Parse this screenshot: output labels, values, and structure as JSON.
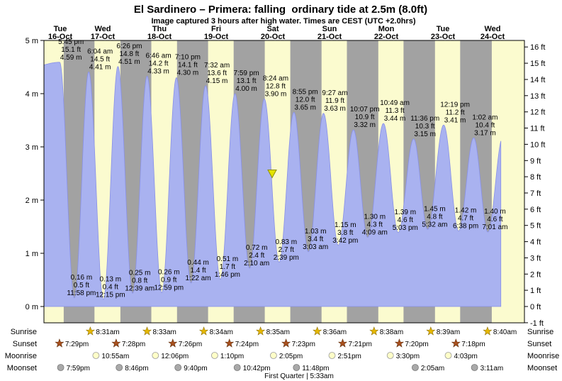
{
  "title": "El Sardinero – Primera: falling  ordinary tide at 2.5m (8.0ft)",
  "subtitle": "Image captured 3 hours after high water. Times are CEST (UTC +2.0hrs)",
  "rows": {
    "sunrise": "Sunrise",
    "sunset": "Sunset",
    "moonrise": "Moonrise",
    "moonset": "Moonset"
  },
  "colors": {
    "day_band": "#fbfbcf",
    "night_band": "#a2a2a2",
    "tide_fill": "#a9b2f0",
    "tide_edge": "#8890e8",
    "day_label_red": "#f00000",
    "marker_yellow": "#e3e300",
    "marker_edge": "#8f8f00",
    "sunrise_star": "#e6b800",
    "sunset_star": "#a8501e",
    "moonrise_circle": "#ffffc8",
    "moonset_circle": "#a9a9a9"
  },
  "chart_data": {
    "type": "area",
    "title": "El Sardinero – Primera tide height over time",
    "x_days": [
      {
        "weekday": "Tue",
        "date": "16-Oct"
      },
      {
        "weekday": "Wed",
        "date": "17-Oct"
      },
      {
        "weekday": "Thu",
        "date": "18-Oct"
      },
      {
        "weekday": "Fri",
        "date": "19-Oct"
      },
      {
        "weekday": "Sat",
        "date": "20-Oct"
      },
      {
        "weekday": "Sun",
        "date": "21-Oct"
      },
      {
        "weekday": "Mon",
        "date": "22-Oct"
      },
      {
        "weekday": "Tue",
        "date": "23-Oct"
      },
      {
        "weekday": "Wed",
        "date": "24-Oct"
      }
    ],
    "y_axis_left": {
      "unit": "m",
      "min": 0,
      "max": 5
    },
    "y_axis_right": {
      "unit": "ft",
      "min": -1,
      "max": 16
    },
    "tide_events": [
      {
        "type": "high",
        "day": 0,
        "time": "5:45 pm",
        "height_m": 4.59,
        "height_ft": 15.1
      },
      {
        "type": "low",
        "day": 0,
        "time": "11:58 pm",
        "height_m": 0.16,
        "height_ft": 0.5
      },
      {
        "type": "high",
        "day": 1,
        "time": "6:04 am",
        "height_m": 4.41,
        "height_ft": 14.5
      },
      {
        "type": "low",
        "day": 1,
        "time": "12:15 pm",
        "height_m": 0.13,
        "height_ft": 0.4
      },
      {
        "type": "high",
        "day": 1,
        "time": "6:26 pm",
        "height_m": 4.51,
        "height_ft": 14.8
      },
      {
        "type": "low",
        "day": 2,
        "time": "12:39 am",
        "height_m": 0.25,
        "height_ft": 0.8
      },
      {
        "type": "high",
        "day": 2,
        "time": "6:46 am",
        "height_m": 4.33,
        "height_ft": 14.2
      },
      {
        "type": "low",
        "day": 2,
        "time": "12:59 pm",
        "height_m": 0.26,
        "height_ft": 0.9
      },
      {
        "type": "high",
        "day": 2,
        "time": "7:10 pm",
        "height_m": 4.3,
        "height_ft": 14.1
      },
      {
        "type": "low",
        "day": 3,
        "time": "1:22 am",
        "height_m": 0.44,
        "height_ft": 1.4
      },
      {
        "type": "high",
        "day": 3,
        "time": "7:32 am",
        "height_m": 4.15,
        "height_ft": 13.6
      },
      {
        "type": "low",
        "day": 3,
        "time": "1:46 pm",
        "height_m": 0.51,
        "height_ft": 1.7
      },
      {
        "type": "high",
        "day": 3,
        "time": "7:59 pm",
        "height_m": 4.0,
        "height_ft": 13.1
      },
      {
        "type": "low",
        "day": 4,
        "time": "2:10 am",
        "height_m": 0.72,
        "height_ft": 2.4
      },
      {
        "type": "high",
        "day": 4,
        "time": "8:24 am",
        "height_m": 3.9,
        "height_ft": 12.8
      },
      {
        "type": "low",
        "day": 4,
        "time": "2:39 pm",
        "height_m": 0.83,
        "height_ft": 2.7
      },
      {
        "type": "high",
        "day": 4,
        "time": "8:55 pm",
        "height_m": 3.65,
        "height_ft": 12.0
      },
      {
        "type": "low",
        "day": 5,
        "time": "3:03 am",
        "height_m": 1.03,
        "height_ft": 3.4
      },
      {
        "type": "high",
        "day": 5,
        "time": "9:27 am",
        "height_m": 3.63,
        "height_ft": 11.9
      },
      {
        "type": "low",
        "day": 5,
        "time": "3:42 pm",
        "height_m": 1.15,
        "height_ft": 3.8
      },
      {
        "type": "high",
        "day": 5,
        "time": "10:07 pm",
        "height_m": 3.32,
        "height_ft": 10.9
      },
      {
        "type": "low",
        "day": 6,
        "time": "4:09 am",
        "height_m": 1.3,
        "height_ft": 4.3
      },
      {
        "type": "high",
        "day": 6,
        "time": "10:49 am",
        "height_m": 3.44,
        "height_ft": 11.3
      },
      {
        "type": "low",
        "day": 6,
        "time": "5:03 pm",
        "height_m": 1.39,
        "height_ft": 4.6
      },
      {
        "type": "high",
        "day": 6,
        "time": "11:36 pm",
        "height_m": 3.15,
        "height_ft": 10.3
      },
      {
        "type": "low",
        "day": 7,
        "time": "5:32 am",
        "height_m": 1.45,
        "height_ft": 4.8
      },
      {
        "type": "high",
        "day": 7,
        "time": "12:19 pm",
        "height_m": 3.41,
        "height_ft": 11.2
      },
      {
        "type": "low",
        "day": 7,
        "time": "6:38 pm",
        "height_m": 1.42,
        "height_ft": 4.7
      },
      {
        "type": "high",
        "day": 8,
        "time": "1:02 am",
        "height_m": 3.17,
        "height_ft": 10.4
      },
      {
        "type": "low",
        "day": 8,
        "time": "7:01 am",
        "height_m": 1.4,
        "height_ft": 4.6
      }
    ],
    "curve_edge_estimates": {
      "start": {
        "day": 0,
        "time": "5:25 am",
        "height_m": 4.5
      },
      "end": {
        "day": 8,
        "time": "1:25 pm",
        "height_m": 3.2
      }
    },
    "capture_marker": {
      "day": 4,
      "time": "11:42 am",
      "height_m": 2.5
    },
    "sunrise": [
      {
        "day": 1,
        "time": "8:31am"
      },
      {
        "day": 2,
        "time": "8:33am"
      },
      {
        "day": 3,
        "time": "8:34am"
      },
      {
        "day": 4,
        "time": "8:35am"
      },
      {
        "day": 5,
        "time": "8:36am"
      },
      {
        "day": 6,
        "time": "8:38am"
      },
      {
        "day": 7,
        "time": "8:39am"
      },
      {
        "day": 8,
        "time": "8:40am"
      }
    ],
    "sunset": [
      {
        "day": 0,
        "time": "7:29pm"
      },
      {
        "day": 1,
        "time": "7:28pm"
      },
      {
        "day": 2,
        "time": "7:26pm"
      },
      {
        "day": 3,
        "time": "7:24pm"
      },
      {
        "day": 4,
        "time": "7:23pm"
      },
      {
        "day": 5,
        "time": "7:21pm"
      },
      {
        "day": 6,
        "time": "7:20pm"
      },
      {
        "day": 7,
        "time": "7:18pm"
      }
    ],
    "moonrise": [
      {
        "day": 1,
        "time": "10:55am"
      },
      {
        "day": 2,
        "time": "12:06pm"
      },
      {
        "day": 3,
        "time": "1:10pm"
      },
      {
        "day": 4,
        "time": "2:05pm"
      },
      {
        "day": 5,
        "time": "2:51pm"
      },
      {
        "day": 6,
        "time": "3:30pm"
      },
      {
        "day": 7,
        "time": "4:03pm"
      }
    ],
    "moonset": [
      {
        "day": 0,
        "time": "7:59pm"
      },
      {
        "day": 1,
        "time": "8:46pm"
      },
      {
        "day": 2,
        "time": "9:40pm"
      },
      {
        "day": 3,
        "time": "10:42pm"
      },
      {
        "day": 4,
        "time": "11:48pm"
      },
      {
        "day": 7,
        "time": "2:05am"
      },
      {
        "day": 8,
        "time": "3:11am"
      }
    ],
    "moon_phase": "First Quarter | 5:33am"
  }
}
